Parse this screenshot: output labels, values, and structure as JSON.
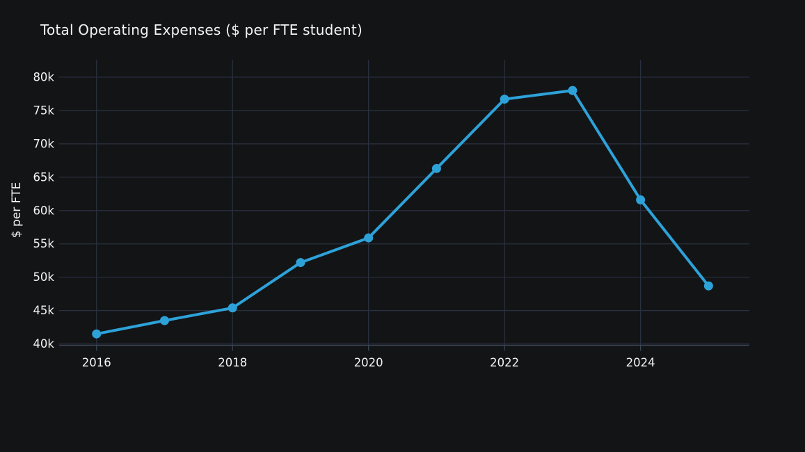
{
  "title": "Total Operating Expenses ($ per FTE student)",
  "colors": {
    "background": "#131416",
    "grid": "#2a3140",
    "axis_line": "#3b4757",
    "tick_mark": "#3b4757",
    "text": "#f2f3f5",
    "series": "#2da2d9"
  },
  "chart_data": {
    "type": "line",
    "title": "Total Operating Expenses ($ per FTE student)",
    "xlabel": "",
    "ylabel": "$ per FTE",
    "x": [
      2016,
      2017,
      2018,
      2019,
      2020,
      2021,
      2022,
      2023,
      2024,
      2025
    ],
    "series": [
      {
        "name": "Total Operating Expenses ($ per FTE student)",
        "values": [
          41500,
          43500,
          45400,
          52200,
          55900,
          66300,
          76700,
          78000,
          61600,
          48700
        ]
      }
    ],
    "x_ticks": {
      "values": [
        2016,
        2018,
        2020,
        2022,
        2024
      ],
      "labels": [
        "2016",
        "2018",
        "2020",
        "2022",
        "2024"
      ]
    },
    "y_ticks": {
      "values": [
        40000,
        45000,
        50000,
        55000,
        60000,
        65000,
        70000,
        75000,
        80000
      ],
      "labels": [
        "40k",
        "45k",
        "50k",
        "55k",
        "60k",
        "65k",
        "70k",
        "75k",
        "80k"
      ]
    },
    "xlim": [
      2015.45,
      2025.6
    ],
    "ylim": [
      39800,
      82600
    ],
    "grid": true,
    "legend": "none",
    "marker": "circle",
    "line_width": 4,
    "marker_radius": 6.5
  }
}
